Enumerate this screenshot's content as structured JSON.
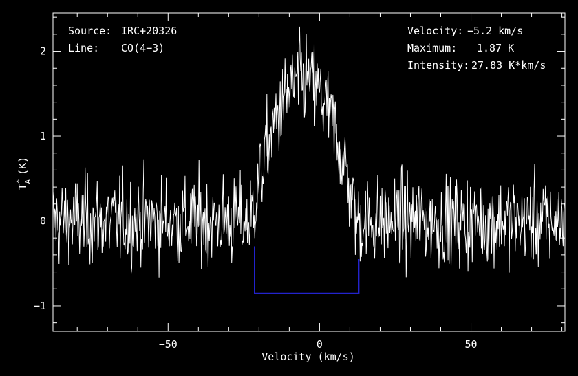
{
  "chart_data": {
    "type": "line",
    "source_label": "Source:",
    "source_value": "IRC+20326",
    "line_label": "Line:",
    "line_value": "CO(4−3)",
    "velocity_label": "Velocity:",
    "velocity_value": "−5.2 km/s",
    "maximum_label": "Maximum:",
    "maximum_value": "1.87 K",
    "intensity_label": "Intensity:",
    "intensity_value": "27.83 K*km/s",
    "xlabel": "Velocity (km/s)",
    "ylabel_main": "T",
    "ylabel_sup": "*",
    "ylabel_sub": "A",
    "ylabel_unit": "(K)",
    "xlim": [
      -88,
      81
    ],
    "ylim": [
      -1.3,
      2.45
    ],
    "x_ticks": [
      -50,
      0,
      50
    ],
    "x_tick_labels": [
      "−50",
      "0",
      "50"
    ],
    "y_ticks": [
      -1,
      0,
      1,
      2
    ],
    "y_tick_labels": [
      "−1",
      "0",
      "1",
      "2"
    ],
    "baseline_y": 0,
    "baseline_color": "#cc2222",
    "window": {
      "x_start": -21.5,
      "x_end": 13.0,
      "y": -0.85,
      "color": "#2323cc"
    },
    "line_profile": {
      "center": -5.2,
      "peak": 1.87,
      "half_width": 17.5
    },
    "noise_rms": 0.26,
    "channel_width": 0.2,
    "series": [
      {
        "color": "#ffffff"
      }
    ],
    "grid": false
  }
}
